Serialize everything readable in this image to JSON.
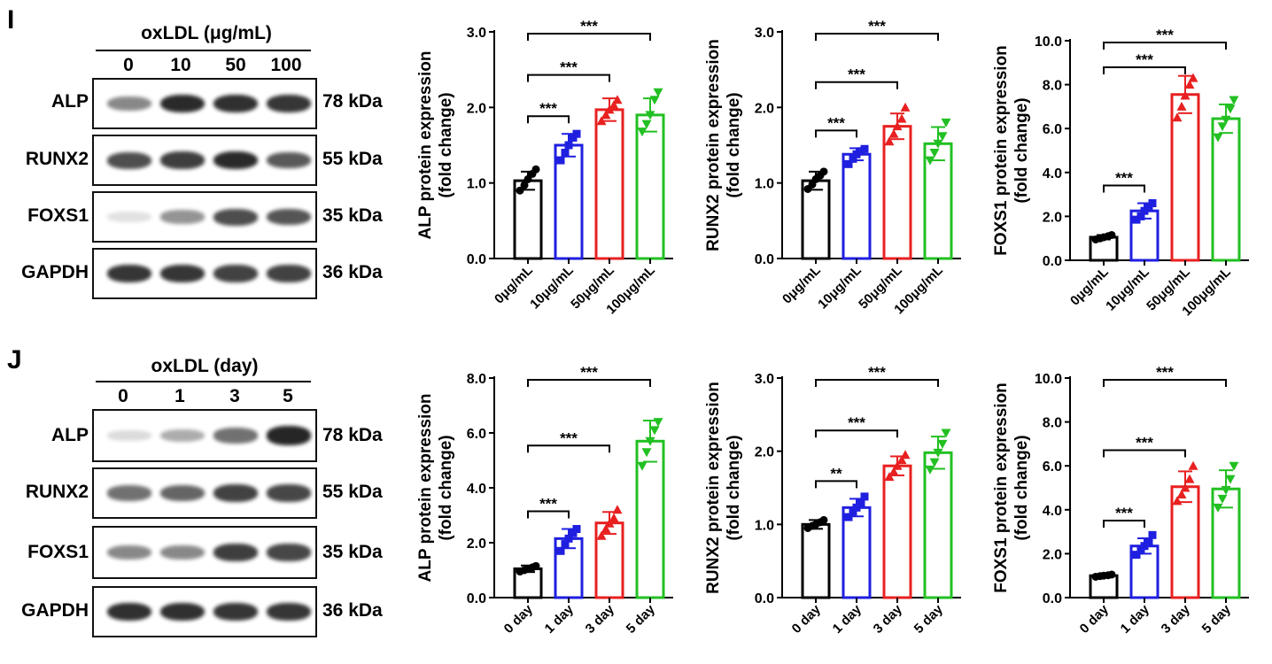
{
  "panels": [
    {
      "letter": "I",
      "blot": {
        "title": "oxLDL (μg/mL)",
        "lanes": [
          "0",
          "10",
          "50",
          "100"
        ],
        "rows": [
          {
            "protein": "ALP",
            "size": "78 kDa",
            "intensity": [
              0.5,
              0.9,
              0.88,
              0.85
            ]
          },
          {
            "protein": "RUNX2",
            "size": "55 kDa",
            "intensity": [
              0.75,
              0.82,
              0.9,
              0.7
            ]
          },
          {
            "protein": "FOXS1",
            "size": "35 kDa",
            "intensity": [
              0.12,
              0.45,
              0.75,
              0.72
            ]
          },
          {
            "protein": "GAPDH",
            "size": "36 kDa",
            "intensity": [
              0.85,
              0.85,
              0.8,
              0.8
            ]
          }
        ]
      }
    },
    {
      "letter": "J",
      "blot": {
        "title": "oxLDL (day)",
        "lanes": [
          "0",
          "1",
          "3",
          "5"
        ],
        "rows": [
          {
            "protein": "ALP",
            "size": "78 kDa",
            "intensity": [
              0.15,
              0.35,
              0.6,
              0.92
            ]
          },
          {
            "protein": "RUNX2",
            "size": "55 kDa",
            "intensity": [
              0.6,
              0.65,
              0.8,
              0.78
            ]
          },
          {
            "protein": "FOXS1",
            "size": "35 kDa",
            "intensity": [
              0.5,
              0.5,
              0.82,
              0.78
            ]
          },
          {
            "protein": "GAPDH",
            "size": "36 kDa",
            "intensity": [
              0.88,
              0.88,
              0.85,
              0.85
            ]
          }
        ]
      }
    }
  ],
  "chart_data": [
    {
      "type": "bar",
      "ylabel_line1": "ALP protein expression",
      "ylabel_line2": "(fold change)",
      "categories": [
        "0μg/mL",
        "10μg/mL",
        "50μg/mL",
        "100μg/mL"
      ],
      "values": [
        1.03,
        1.5,
        1.97,
        1.9
      ],
      "errors": [
        0.12,
        0.15,
        0.15,
        0.22
      ],
      "points": [
        [
          0.9,
          0.97,
          1.05,
          1.12,
          1.18
        ],
        [
          1.3,
          1.4,
          1.5,
          1.6,
          1.65
        ],
        [
          1.82,
          1.9,
          1.97,
          2.03,
          2.1
        ],
        [
          1.68,
          1.78,
          1.9,
          2.1,
          2.2
        ]
      ],
      "ylim": [
        0,
        3.0
      ],
      "yticks": [
        "0.0",
        "1.0",
        "2.0",
        "3.0"
      ],
      "comparisons": [
        {
          "from": 0,
          "to": 1,
          "label": "***"
        },
        {
          "from": 0,
          "to": 2,
          "label": "***"
        },
        {
          "from": 0,
          "to": 3,
          "label": "***"
        }
      ]
    },
    {
      "type": "bar",
      "ylabel_line1": "RUNX2 protein expression",
      "ylabel_line2": "(fold change)",
      "categories": [
        "0μg/mL",
        "10μg/mL",
        "50μg/mL",
        "100μg/mL"
      ],
      "values": [
        1.03,
        1.38,
        1.75,
        1.52
      ],
      "errors": [
        0.12,
        0.08,
        0.17,
        0.22
      ],
      "points": [
        [
          0.92,
          0.98,
          1.05,
          1.1,
          1.15
        ],
        [
          1.25,
          1.32,
          1.38,
          1.42,
          1.45
        ],
        [
          1.55,
          1.65,
          1.75,
          1.85,
          2.0
        ],
        [
          1.3,
          1.4,
          1.52,
          1.62,
          1.8
        ]
      ],
      "ylim": [
        0,
        3.0
      ],
      "yticks": [
        "0.0",
        "1.0",
        "2.0",
        "3.0"
      ],
      "comparisons": [
        {
          "from": 0,
          "to": 1,
          "label": "***"
        },
        {
          "from": 0,
          "to": 2,
          "label": "***"
        },
        {
          "from": 0,
          "to": 3,
          "label": "***"
        }
      ]
    },
    {
      "type": "bar",
      "ylabel_line1": "FOXS1 protein expression",
      "ylabel_line2": "(fold change)",
      "categories": [
        "0μg/mL",
        "10μg/mL",
        "50μg/mL",
        "100μg/mL"
      ],
      "values": [
        1.05,
        2.25,
        7.55,
        6.45
      ],
      "errors": [
        0.1,
        0.35,
        0.85,
        0.65
      ],
      "points": [
        [
          0.95,
          1.0,
          1.05,
          1.1,
          1.15
        ],
        [
          1.85,
          2.0,
          2.25,
          2.45,
          2.6
        ],
        [
          6.5,
          7.0,
          7.5,
          8.0,
          8.3
        ],
        [
          5.6,
          6.1,
          6.4,
          6.9,
          7.3
        ]
      ],
      "ylim": [
        0,
        10.0
      ],
      "yticks": [
        "0.0",
        "2.0",
        "4.0",
        "6.0",
        "8.0",
        "10.0"
      ],
      "comparisons": [
        {
          "from": 0,
          "to": 1,
          "label": "***"
        },
        {
          "from": 0,
          "to": 2,
          "label": "***"
        },
        {
          "from": 0,
          "to": 3,
          "label": "***"
        }
      ]
    },
    {
      "type": "bar",
      "ylabel_line1": "ALP protein expression",
      "ylabel_line2": "(fold change)",
      "categories": [
        "0 day",
        "1 day",
        "3 day",
        "5 day"
      ],
      "values": [
        1.05,
        2.15,
        2.72,
        5.7
      ],
      "errors": [
        0.12,
        0.35,
        0.4,
        0.75
      ],
      "points": [
        [
          0.95,
          1.0,
          1.05,
          1.1,
          1.15
        ],
        [
          1.7,
          1.95,
          2.15,
          2.35,
          2.5
        ],
        [
          2.25,
          2.5,
          2.7,
          2.9,
          3.2
        ],
        [
          4.8,
          5.3,
          5.7,
          6.1,
          6.4
        ]
      ],
      "ylim": [
        0,
        8.0
      ],
      "yticks": [
        "0.0",
        "2.0",
        "4.0",
        "6.0",
        "8.0"
      ],
      "comparisons": [
        {
          "from": 0,
          "to": 1,
          "label": "***"
        },
        {
          "from": 0,
          "to": 2,
          "label": "***"
        },
        {
          "from": 0,
          "to": 3,
          "label": "***"
        }
      ]
    },
    {
      "type": "bar",
      "ylabel_line1": "RUNX2 protein expression",
      "ylabel_line2": "(fold change)",
      "categories": [
        "0 day",
        "1 day",
        "3 day",
        "5 day"
      ],
      "values": [
        1.0,
        1.23,
        1.8,
        1.98
      ],
      "errors": [
        0.06,
        0.12,
        0.13,
        0.22
      ],
      "points": [
        [
          0.95,
          0.98,
          1.0,
          1.03,
          1.06
        ],
        [
          1.1,
          1.17,
          1.23,
          1.3,
          1.38
        ],
        [
          1.65,
          1.72,
          1.8,
          1.88,
          1.95
        ],
        [
          1.75,
          1.85,
          1.98,
          2.1,
          2.25
        ]
      ],
      "ylim": [
        0,
        3.0
      ],
      "yticks": [
        "0.0",
        "1.0",
        "2.0",
        "3.0"
      ],
      "comparisons": [
        {
          "from": 0,
          "to": 1,
          "label": "**"
        },
        {
          "from": 0,
          "to": 2,
          "label": "***"
        },
        {
          "from": 0,
          "to": 3,
          "label": "***"
        }
      ]
    },
    {
      "type": "bar",
      "ylabel_line1": "FOXS1 protein expression",
      "ylabel_line2": "(fold change)",
      "categories": [
        "0 day",
        "1 day",
        "3 day",
        "5 day"
      ],
      "values": [
        1.0,
        2.35,
        5.05,
        4.95
      ],
      "errors": [
        0.07,
        0.35,
        0.7,
        0.85
      ],
      "points": [
        [
          0.95,
          0.98,
          1.0,
          1.02,
          1.05
        ],
        [
          1.95,
          2.15,
          2.35,
          2.55,
          2.85
        ],
        [
          4.4,
          4.7,
          5.0,
          5.4,
          6.0
        ],
        [
          4.1,
          4.5,
          4.9,
          5.4,
          6.0
        ]
      ],
      "ylim": [
        0,
        10.0
      ],
      "yticks": [
        "0.0",
        "2.0",
        "4.0",
        "6.0",
        "8.0",
        "10.0"
      ],
      "comparisons": [
        {
          "from": 0,
          "to": 1,
          "label": "***"
        },
        {
          "from": 0,
          "to": 2,
          "label": "***"
        },
        {
          "from": 0,
          "to": 3,
          "label": "***"
        }
      ]
    }
  ],
  "colors": {
    "series": [
      "#000000",
      "#1f1fe0",
      "#e82020",
      "#22c022"
    ],
    "band": "#141414"
  }
}
